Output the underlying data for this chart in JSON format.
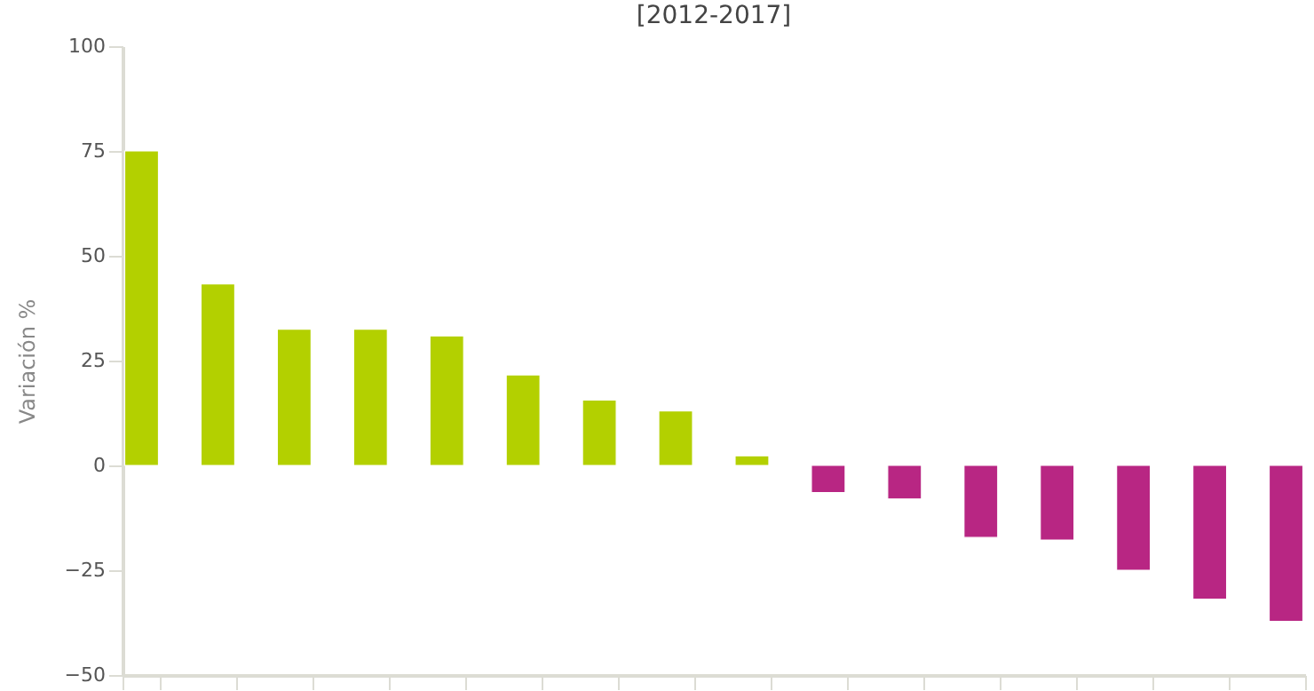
{
  "chart_data": {
    "type": "bar",
    "title": "[2012-2017]",
    "ylabel": "Variación %",
    "categories": [
      null,
      null,
      null,
      null,
      null,
      null,
      null,
      null,
      null,
      null,
      null,
      null,
      null,
      null,
      null,
      null
    ],
    "values": [
      75,
      43.3,
      32.5,
      32.5,
      30.9,
      21.6,
      15.6,
      13,
      2.3,
      -6.5,
      -8,
      -17.2,
      -17.8,
      -25,
      -31.9,
      -37.2
    ],
    "colors": [
      "#b3d000",
      "#b3d000",
      "#b3d000",
      "#b3d000",
      "#b3d000",
      "#b3d000",
      "#b3d000",
      "#b3d000",
      "#b3d000",
      "#b82683",
      "#b82683",
      "#b82683",
      "#b82683",
      "#b82683",
      "#b82683",
      "#b82683"
    ],
    "ylim": [
      -50,
      100
    ],
    "yticks": [
      -50,
      -25,
      0,
      25,
      50,
      75,
      100
    ],
    "grid": false,
    "tick_labels": "y"
  }
}
